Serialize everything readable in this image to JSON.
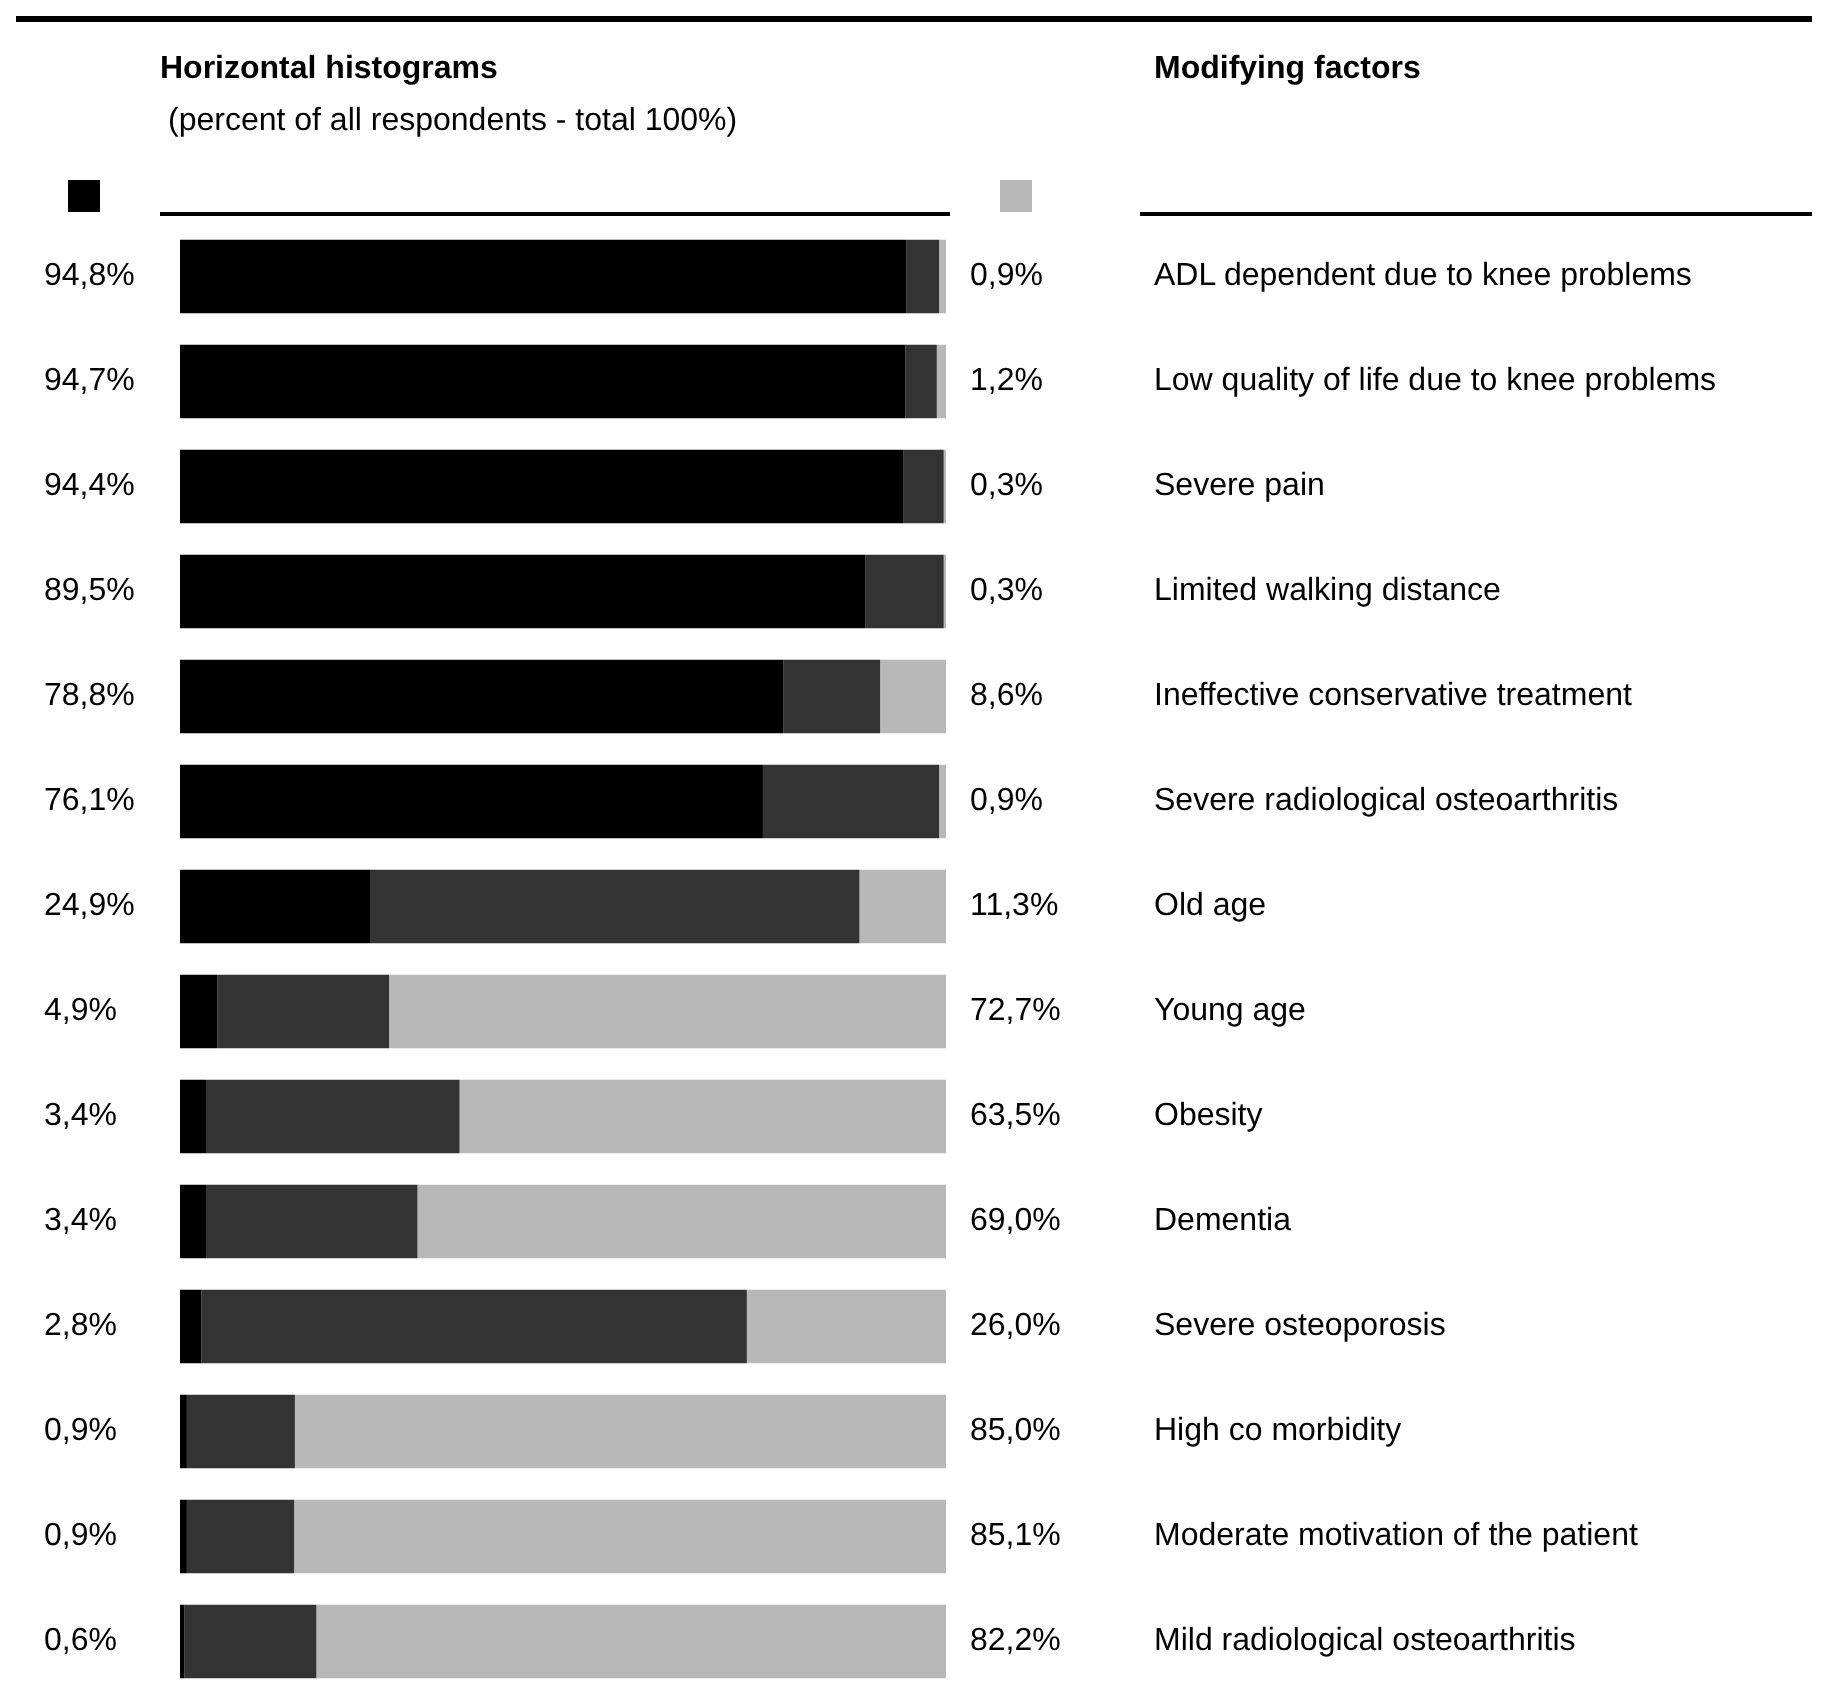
{
  "chart_data": {
    "type": "bar",
    "orientation": "horizontal",
    "stacked": true,
    "title": "Horizontal histograms",
    "subtitle": "(percent of all respondents - total 100%)",
    "annotations": [
      "Modifying factors"
    ],
    "categories": [
      "ADL dependent due to knee problems",
      "Low quality of life due to knee problems",
      "Severe pain",
      "Limited walking distance",
      "Ineffective conservative treatment",
      "Severe radiological osteoarthritis",
      "Old age",
      "Young age",
      "Obesity",
      "Dementia",
      "Severe osteoporosis",
      "High co morbidity",
      "Moderate motivation of the patient",
      "Mild radiological osteoarthritis"
    ],
    "xlim": [
      0,
      100
    ],
    "tick_labels": "y",
    "grid": false,
    "legend": false,
    "series": [
      {
        "color": "#000000",
        "values": [
          94.8,
          94.7,
          94.4,
          89.5,
          78.8,
          76.1,
          24.9,
          4.9,
          3.4,
          3.4,
          2.8,
          0.9,
          0.9,
          0.6
        ],
        "value_labels": [
          "94,8%",
          "94,7%",
          "94,4%",
          "89,5%",
          "78,8%",
          "76,1%",
          "24,9%",
          "4,9%",
          "3,4%",
          "3,4%",
          "2,8%",
          "0,9%",
          "0,9%",
          "0,6%"
        ]
      },
      {
        "color": "#333333",
        "values": [
          4.3,
          4.1,
          5.3,
          10.2,
          12.6,
          23.0,
          63.8,
          22.4,
          33.1,
          27.6,
          71.2,
          14.1,
          14.0,
          17.2
        ]
      },
      {
        "color": "#b8b8b8",
        "values": [
          0.9,
          1.2,
          0.3,
          0.3,
          8.6,
          0.9,
          11.3,
          72.7,
          63.5,
          69.0,
          26.0,
          85.0,
          85.1,
          82.2
        ],
        "value_labels": [
          "0,9%",
          "1,2%",
          "0,3%",
          "0,3%",
          "8,6%",
          "0,9%",
          "11,3%",
          "72,7%",
          "63,5%",
          "69,0%",
          "26,0%",
          "85,0%",
          "85,1%",
          "82,2%"
        ]
      }
    ]
  }
}
